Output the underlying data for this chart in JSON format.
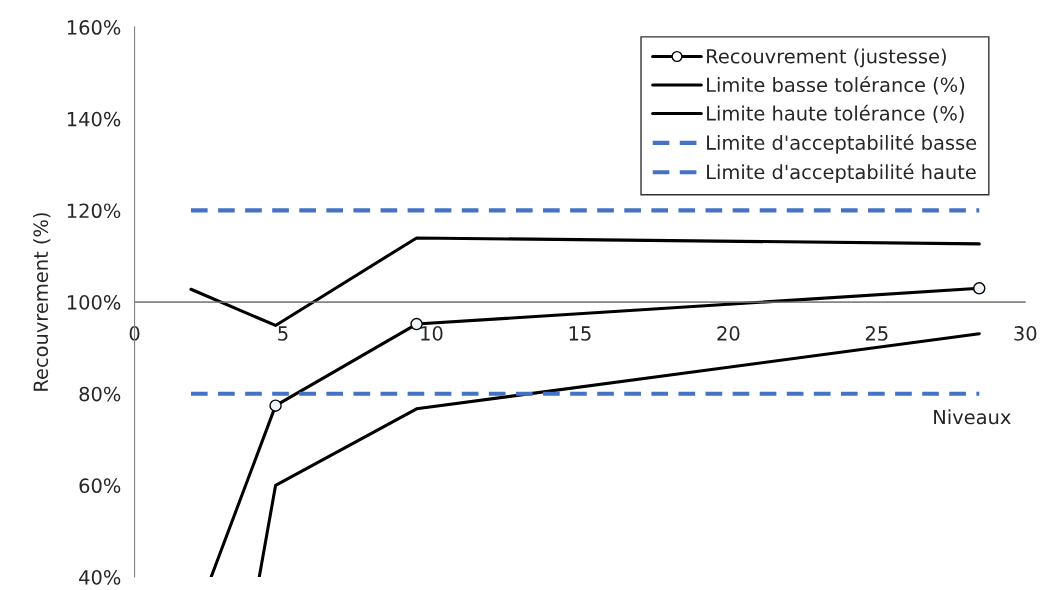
{
  "chart_data": {
    "type": "line",
    "xlabel": "Niveaux",
    "ylabel": "Recouvrement (%)",
    "x": [
      1.9,
      4.75,
      9.5,
      28.45
    ],
    "series": [
      {
        "name": "Recouvrement (justesse)",
        "color": "#000000",
        "marker": "circle",
        "line_style": "solid",
        "x": [
          2.58,
          4.75,
          9.5,
          28.45
        ],
        "values": [
          40,
          77.4,
          95.2,
          103.0
        ]
      },
      {
        "name": "Limite basse tolérance (%)",
        "color": "#000000",
        "line_style": "solid",
        "x": [
          4.2,
          4.75,
          9.5,
          28.45
        ],
        "values": [
          40,
          60.0,
          76.7,
          93.1
        ]
      },
      {
        "name": "Limite haute tolérance (%)",
        "color": "#000000",
        "line_style": "solid",
        "values": [
          102.8,
          94.9,
          114.0,
          112.7
        ]
      },
      {
        "name": "Limite d'acceptabilité basse",
        "color": "#4472c4",
        "line_style": "dashed",
        "values": [
          80,
          80,
          80,
          80
        ]
      },
      {
        "name": "Limite d'acceptabilité haute",
        "color": "#4472c4",
        "line_style": "dashed",
        "values": [
          120,
          120,
          120,
          120
        ]
      }
    ],
    "xlim": [
      0,
      30
    ],
    "xticks": [
      0,
      5,
      10,
      15,
      20,
      25,
      30
    ],
    "ylim": [
      40,
      160
    ],
    "yticks": [
      {
        "value": 40,
        "label": "40%"
      },
      {
        "value": 60,
        "label": "60%"
      },
      {
        "value": 80,
        "label": "80%"
      },
      {
        "value": 100,
        "label": "100%"
      },
      {
        "value": 120,
        "label": "120%"
      },
      {
        "value": 140,
        "label": "140%"
      },
      {
        "value": 160,
        "label": "160%"
      }
    ],
    "ref_lines": [
      {
        "axis": "y",
        "value": 100,
        "color": "#808080"
      }
    ],
    "grid": false,
    "legend": "top right"
  }
}
